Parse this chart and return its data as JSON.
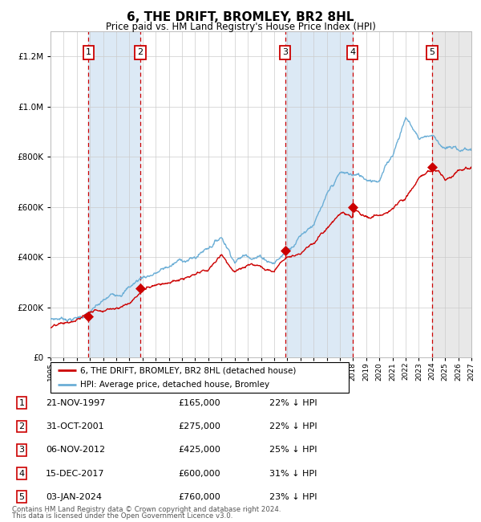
{
  "title": "6, THE DRIFT, BROMLEY, BR2 8HL",
  "subtitle": "Price paid vs. HM Land Registry's House Price Index (HPI)",
  "footer1": "Contains HM Land Registry data © Crown copyright and database right 2024.",
  "footer2": "This data is licensed under the Open Government Licence v3.0.",
  "legend_line1": "6, THE DRIFT, BROMLEY, BR2 8HL (detached house)",
  "legend_line2": "HPI: Average price, detached house, Bromley",
  "x_start_year": 1995,
  "x_end_year": 2027,
  "y_min": 0,
  "y_max": 1300000,
  "purchases": [
    {
      "label": "1",
      "date": "21-NOV-1997",
      "year": 1997.89,
      "price": 165000,
      "info": "22% ↓ HPI"
    },
    {
      "label": "2",
      "date": "31-OCT-2001",
      "year": 2001.83,
      "price": 275000,
      "info": "22% ↓ HPI"
    },
    {
      "label": "3",
      "date": "06-NOV-2012",
      "year": 2012.85,
      "price": 425000,
      "info": "25% ↓ HPI"
    },
    {
      "label": "4",
      "date": "15-DEC-2017",
      "year": 2017.96,
      "price": 600000,
      "info": "31% ↓ HPI"
    },
    {
      "label": "5",
      "date": "03-JAN-2024",
      "year": 2024.01,
      "price": 760000,
      "info": "23% ↓ HPI"
    }
  ],
  "hpi_color": "#6baed6",
  "price_color": "#cc0000",
  "dashed_color": "#cc0000",
  "shaded_color": "#dce9f5",
  "background_color": "#ffffff",
  "grid_color": "#cccccc",
  "hpi_anchors": {
    "1995": 155000,
    "1997": 170000,
    "1998": 195000,
    "2000": 255000,
    "2002": 340000,
    "2004": 385000,
    "2005": 410000,
    "2006": 420000,
    "2008": 520000,
    "2009": 440000,
    "2010": 470000,
    "2011": 475000,
    "2012": 460000,
    "2013": 510000,
    "2014": 590000,
    "2015": 650000,
    "2016": 740000,
    "2017": 820000,
    "2018": 810000,
    "2019": 795000,
    "2020": 810000,
    "2021": 910000,
    "2022": 1070000,
    "2023": 990000,
    "2024": 1010000,
    "2025": 965000,
    "2026": 950000,
    "2027": 960000
  },
  "price_anchors": {
    "1995": 118000,
    "1996": 124000,
    "1997": 132000,
    "1997.89": 165000,
    "1998": 168000,
    "1999": 185000,
    "2000": 205000,
    "2001": 230000,
    "2001.83": 275000,
    "2002": 280000,
    "2003": 315000,
    "2004": 335000,
    "2005": 345000,
    "2006": 350000,
    "2007": 358000,
    "2008": 420000,
    "2009": 360000,
    "2010": 375000,
    "2011": 382000,
    "2012": 362000,
    "2012.85": 425000,
    "2013": 432000,
    "2014": 462000,
    "2015": 512000,
    "2016": 560000,
    "2017": 618000,
    "2017.96": 600000,
    "2018": 622000,
    "2019": 588000,
    "2020": 590000,
    "2021": 622000,
    "2022": 652000,
    "2023": 712000,
    "2024.01": 760000,
    "2024.5": 755000,
    "2025": 718000,
    "2026": 768000,
    "2027": 798000
  }
}
